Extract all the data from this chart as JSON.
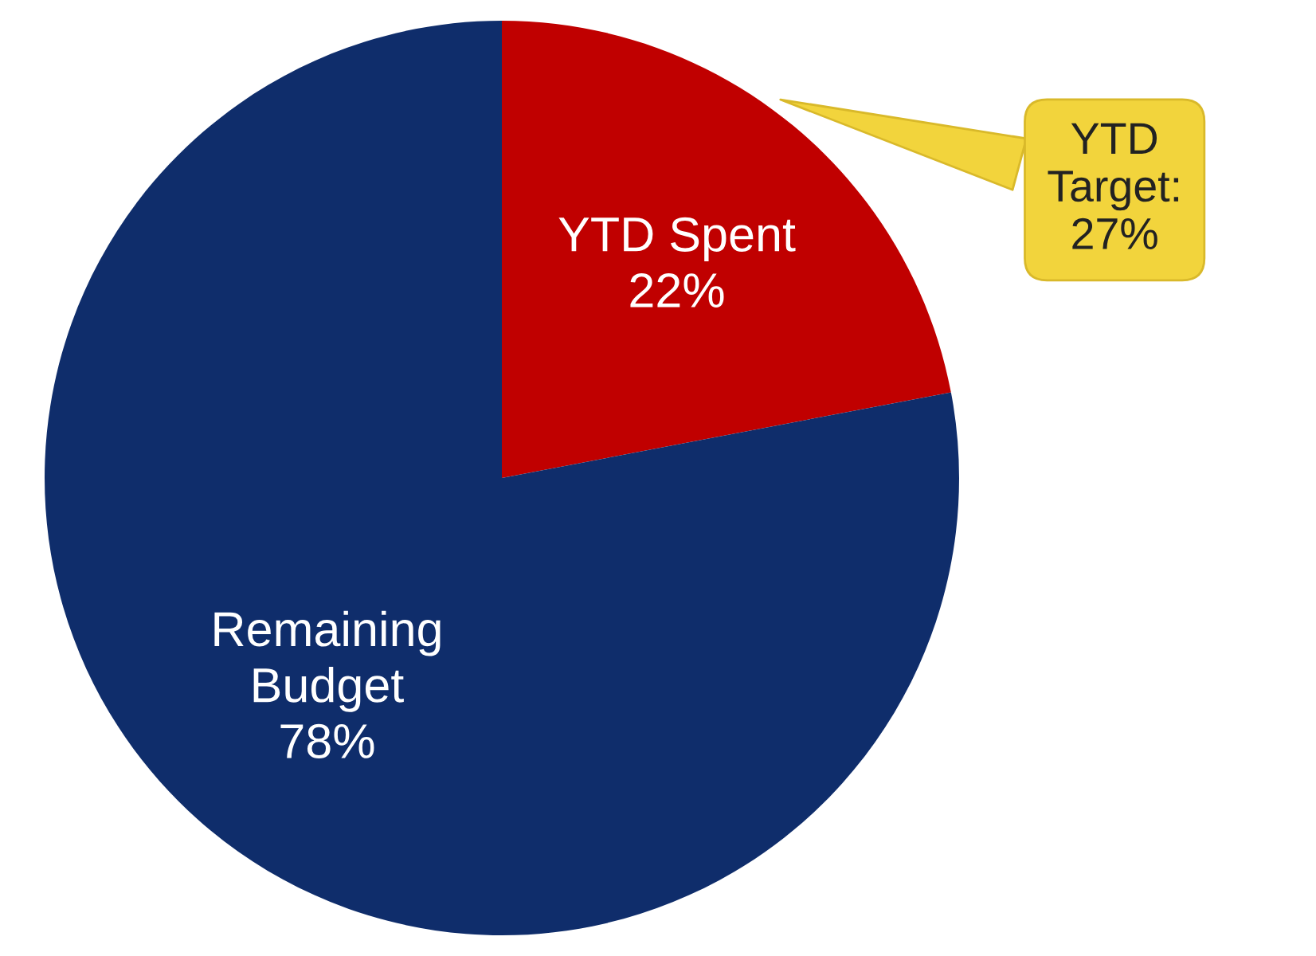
{
  "chart_data": {
    "type": "pie",
    "categories": [
      "YTD Spent",
      "Remaining\nBudget"
    ],
    "values": [
      22,
      78
    ],
    "colors": [
      "#c00000",
      "#0f2d6b"
    ],
    "value_labels": [
      "22%",
      "78%"
    ],
    "annotations": [
      "YTD\nTarget:\n27%"
    ]
  }
}
